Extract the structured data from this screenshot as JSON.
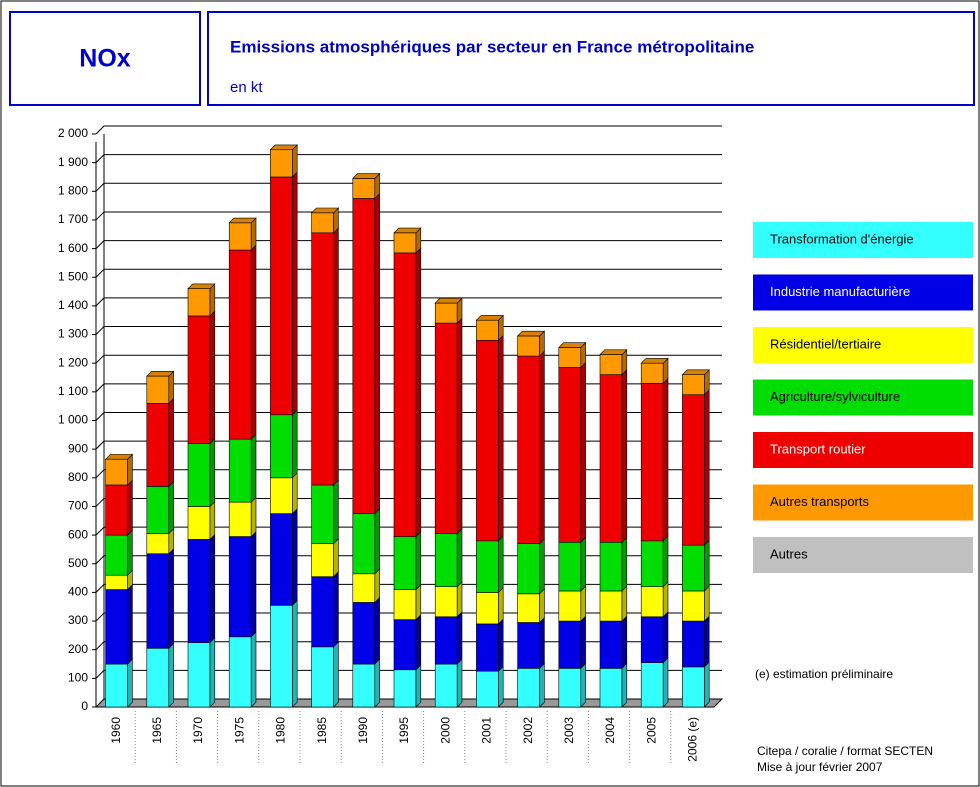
{
  "chart_data": {
    "type": "bar",
    "badge": "NOx",
    "title": "Emissions atmosphériques par secteur en France métropolitaine",
    "subtitle": "en kt",
    "categories": [
      "1960",
      "1965",
      "1970",
      "1975",
      "1980",
      "1985",
      "1990",
      "1995",
      "2000",
      "2001",
      "2002",
      "2003",
      "2004",
      "2005",
      "2006 (e)"
    ],
    "series": [
      {
        "name": "Transformation d'énergie",
        "color": "#33ffff",
        "values": [
          150,
          205,
          225,
          245,
          355,
          210,
          150,
          130,
          150,
          125,
          135,
          135,
          135,
          155,
          140
        ]
      },
      {
        "name": "Industrie manufacturière",
        "color": "#0000e6",
        "values": [
          260,
          330,
          360,
          350,
          320,
          245,
          215,
          175,
          165,
          165,
          160,
          165,
          165,
          160,
          160
        ]
      },
      {
        "name": "Résidentiel/tertiaire",
        "color": "#ffff00",
        "values": [
          50,
          70,
          115,
          120,
          125,
          115,
          100,
          105,
          105,
          110,
          100,
          105,
          105,
          105,
          105
        ]
      },
      {
        "name": "Agriculture/sylviculture",
        "color": "#00dd00",
        "values": [
          140,
          165,
          220,
          220,
          220,
          205,
          210,
          185,
          185,
          180,
          175,
          170,
          170,
          160,
          160
        ]
      },
      {
        "name": "Transport routier",
        "color": "#ee0000",
        "values": [
          175,
          290,
          445,
          660,
          830,
          880,
          1100,
          990,
          735,
          700,
          655,
          610,
          585,
          550,
          525
        ]
      },
      {
        "name": "Autres transports",
        "color": "#ff9900",
        "values": [
          90,
          95,
          95,
          95,
          95,
          70,
          70,
          70,
          70,
          70,
          70,
          70,
          70,
          70,
          70
        ]
      },
      {
        "name": "Autres",
        "color": "#c0c0c0",
        "values": [
          0,
          0,
          0,
          0,
          0,
          0,
          0,
          0,
          0,
          0,
          0,
          0,
          0,
          0,
          0
        ]
      }
    ],
    "ylim": [
      0,
      2000
    ],
    "yticks": [
      0,
      100,
      200,
      300,
      400,
      500,
      600,
      700,
      800,
      900,
      {
        "value": 1000,
        "label": "1 000"
      },
      {
        "value": 1100,
        "label": "1 100"
      },
      {
        "value": 1200,
        "label": "1 200"
      },
      {
        "value": 1300,
        "label": "1 300"
      },
      {
        "value": 1400,
        "label": "1 400"
      },
      {
        "value": 1500,
        "label": "1 500"
      },
      {
        "value": 1600,
        "label": "1 600"
      },
      {
        "value": 1700,
        "label": "1 700"
      },
      {
        "value": 1800,
        "label": "1 800"
      },
      {
        "value": 1900,
        "label": "1 900"
      },
      {
        "value": 2000,
        "label": "2 000"
      }
    ],
    "grid": true,
    "notes": [
      "(e) estimation préliminaire",
      "Citepa / coralie  / format SECTEN",
      "Mise à jour février 2007"
    ]
  }
}
